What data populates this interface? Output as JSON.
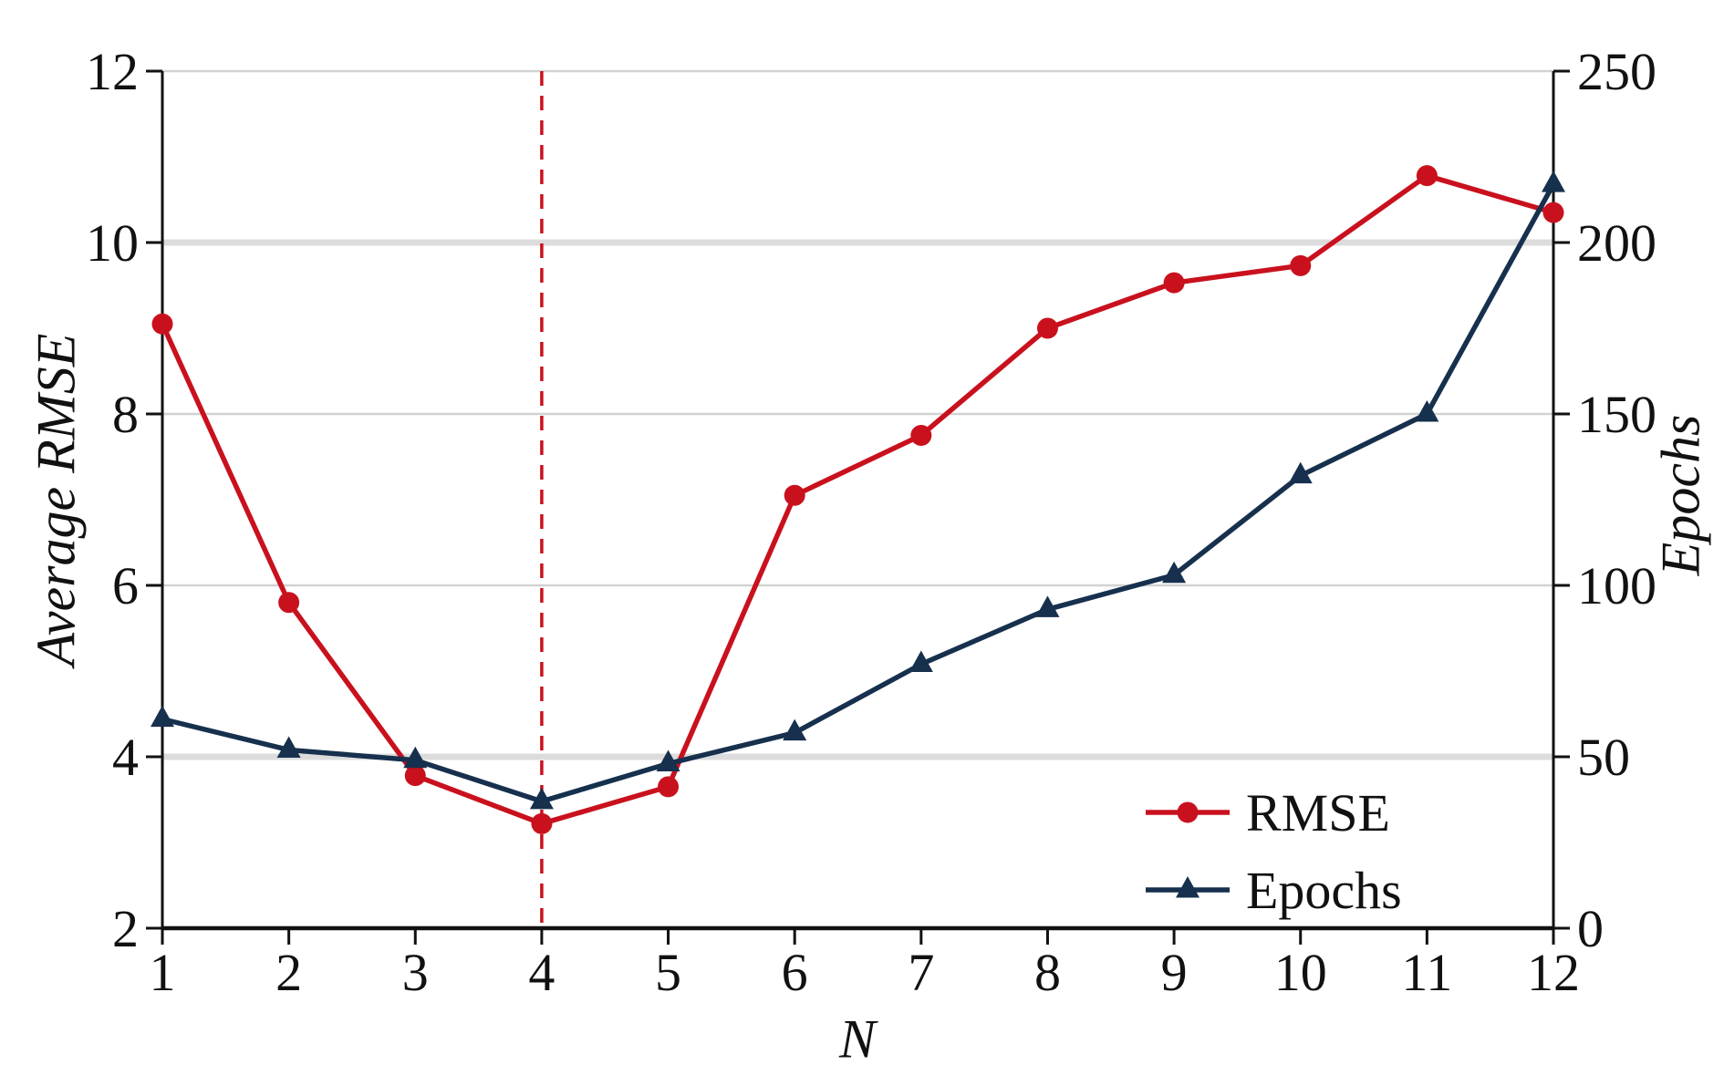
{
  "figure": {
    "background": "#ffffff"
  },
  "chart_data": {
    "type": "line",
    "title": "",
    "xlabel": "N",
    "ylabel_left": "Average RMSE",
    "ylabel_right": "Epochs",
    "x": [
      1,
      2,
      3,
      4,
      5,
      6,
      7,
      8,
      9,
      10,
      11,
      12
    ],
    "series": [
      {
        "name": "RMSE",
        "yaxis": "left",
        "color": "#c9111e",
        "marker": "circle",
        "values": [
          9.05,
          5.8,
          3.78,
          3.22,
          3.65,
          7.05,
          7.75,
          9.0,
          9.53,
          9.73,
          10.78,
          10.35
        ]
      },
      {
        "name": "Epochs",
        "yaxis": "right",
        "color": "#16304d",
        "marker": "triangle-up",
        "values": [
          61,
          52,
          49,
          37,
          48,
          57,
          77,
          93,
          103,
          132,
          150,
          217
        ]
      }
    ],
    "left_axis": {
      "label": "Average RMSE",
      "min": 2,
      "max": 12,
      "ticks": [
        2,
        4,
        6,
        8,
        10,
        12
      ],
      "tick_labels": [
        "2",
        "4",
        "6",
        "8",
        "10",
        "12"
      ]
    },
    "right_axis": {
      "label": "Epochs",
      "min": 0,
      "max": 250,
      "ticks": [
        0,
        50,
        100,
        150,
        200,
        250
      ],
      "tick_labels": [
        "0",
        "50",
        "100",
        "150",
        "200",
        "250"
      ]
    },
    "x_axis": {
      "label": "N",
      "min": 1,
      "max": 12,
      "ticks": [
        1,
        2,
        3,
        4,
        5,
        6,
        7,
        8,
        9,
        10,
        11,
        12
      ],
      "tick_labels": [
        "1",
        "2",
        "3",
        "4",
        "5",
        "6",
        "7",
        "8",
        "9",
        "10",
        "11",
        "12"
      ]
    },
    "annotations": [
      {
        "type": "vline",
        "x": 4,
        "line_style": "dashed",
        "color": "#c9111e"
      }
    ],
    "legend": {
      "position": "lower-right",
      "entries": [
        "RMSE",
        "Epochs"
      ]
    },
    "grid": {
      "show": true,
      "color": "#d2d2d2",
      "emphasized_left_values": [
        4,
        10
      ],
      "emphasized_color": "#dcdcdc"
    },
    "colors": {
      "rmse": "#c9111e",
      "epochs": "#16304d",
      "axis": "#111111",
      "background": "#ffffff"
    }
  }
}
